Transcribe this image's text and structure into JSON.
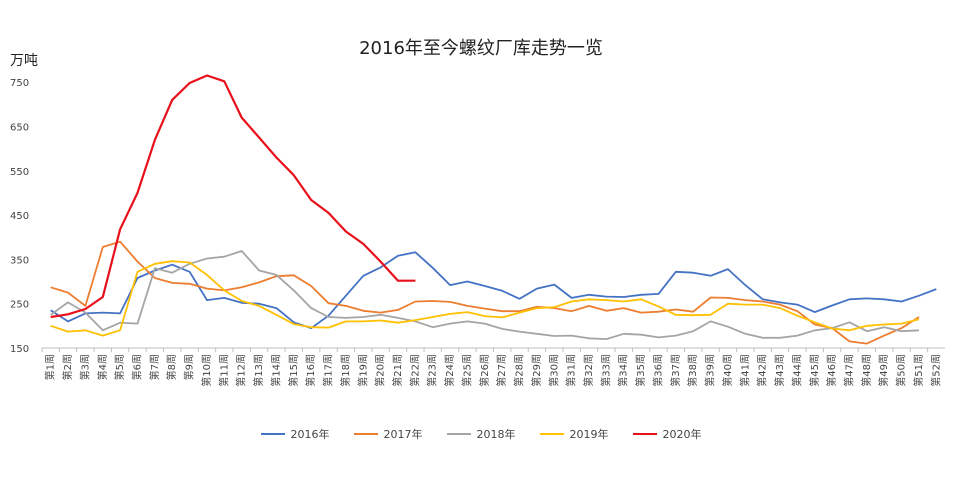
{
  "chart_data": {
    "type": "line",
    "title": "2016年至今螺纹厂库走势一览",
    "unit": "万吨",
    "ylim": [
      150,
      800
    ],
    "yticks": [
      150,
      250,
      350,
      450,
      550,
      650,
      750
    ],
    "grid": false,
    "legend_position": "bottom",
    "categories": [
      "第1周",
      "第2周",
      "第3周",
      "第4周",
      "第5周",
      "第6周",
      "第7周",
      "第8周",
      "第9周",
      "第10周",
      "第11周",
      "第12周",
      "第13周",
      "第14周",
      "第15周",
      "第16周",
      "第17周",
      "第18周",
      "第19周",
      "第20周",
      "第21周",
      "第22周",
      "第23周",
      "第24周",
      "第25周",
      "第26周",
      "第27周",
      "第28周",
      "第29周",
      "第30周",
      "第31周",
      "第32周",
      "第33周",
      "第34周",
      "第35周",
      "第36周",
      "第37周",
      "第38周",
      "第39周",
      "第40周",
      "第41周",
      "第42周",
      "第43周",
      "第44周",
      "第45周",
      "第46周",
      "第47周",
      "第48周",
      "第49周",
      "第50周",
      "第51周",
      "第52周"
    ],
    "series": [
      {
        "name": "2016年",
        "color": "#4472C4",
        "values": [
          235,
          210,
          228,
          230,
          228,
          308,
          325,
          338,
          322,
          258,
          263,
          252,
          250,
          240,
          208,
          195,
          223,
          268,
          313,
          332,
          358,
          366,
          331,
          292,
          300,
          290,
          279,
          261,
          284,
          293,
          263,
          270,
          266,
          265,
          270,
          272,
          322,
          320,
          313,
          328,
          292,
          260,
          253,
          248,
          231,
          246,
          260,
          262,
          260,
          255,
          268,
          283
        ]
      },
      {
        "name": "2017年",
        "color": "#ED7D31",
        "values": [
          287,
          275,
          245,
          378,
          390,
          345,
          308,
          297,
          295,
          284,
          280,
          287,
          298,
          312,
          314,
          290,
          251,
          245,
          234,
          230,
          236,
          255,
          256,
          254,
          245,
          239,
          233,
          233,
          243,
          240,
          233,
          245,
          234,
          240,
          230,
          232,
          237,
          232,
          264,
          263,
          258,
          255,
          248,
          233,
          203,
          195,
          165,
          160,
          178,
          195,
          220,
          null
        ]
      },
      {
        "name": "2018年",
        "color": "#A5A5A5",
        "values": [
          225,
          253,
          230,
          190,
          207,
          205,
          330,
          320,
          340,
          352,
          356,
          369,
          325,
          315,
          280,
          240,
          220,
          218,
          220,
          225,
          218,
          210,
          197,
          205,
          210,
          205,
          193,
          187,
          182,
          177,
          178,
          172,
          170,
          182,
          180,
          174,
          178,
          188,
          210,
          198,
          182,
          173,
          173,
          178,
          190,
          195,
          208,
          188,
          197,
          188,
          190,
          null
        ]
      },
      {
        "name": "2019年",
        "color": "#FFC000",
        "values": [
          200,
          187,
          190,
          178,
          190,
          322,
          340,
          346,
          343,
          315,
          280,
          256,
          245,
          225,
          204,
          197,
          196,
          210,
          210,
          212,
          207,
          213,
          220,
          227,
          231,
          222,
          219,
          230,
          240,
          242,
          255,
          260,
          258,
          255,
          260,
          244,
          225,
          224,
          225,
          250,
          248,
          248,
          240,
          223,
          208,
          194,
          190,
          200,
          203,
          205,
          215,
          null
        ]
      },
      {
        "name": "2020年",
        "color": "#E8101A",
        "values": [
          220,
          226,
          238,
          265,
          418,
          500,
          620,
          710,
          748,
          765,
          752,
          670,
          625,
          580,
          540,
          484,
          455,
          413,
          385,
          345,
          302,
          302,
          null,
          null,
          null,
          null,
          null,
          null,
          null,
          null,
          null,
          null,
          null,
          null,
          null,
          null,
          null,
          null,
          null,
          null,
          null,
          null,
          null,
          null,
          null,
          null,
          null,
          null,
          null,
          null,
          null,
          null
        ]
      }
    ]
  }
}
